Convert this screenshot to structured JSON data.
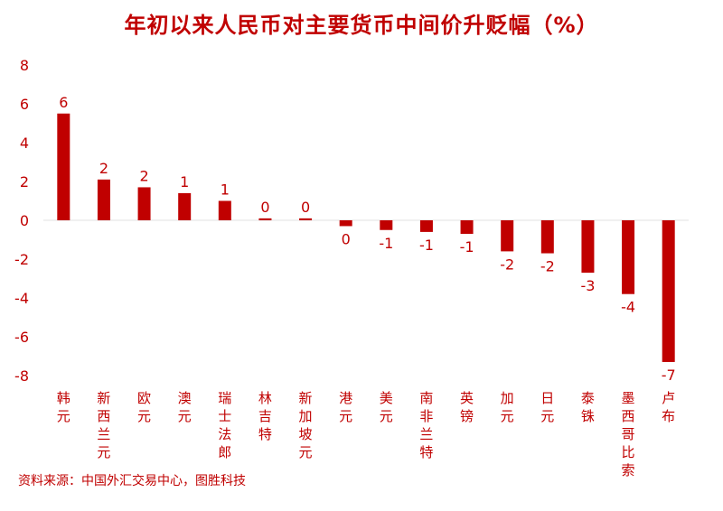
{
  "chart_data": {
    "type": "bar",
    "title": "年初以来人民币对主要货币中间价升贬幅（%）",
    "xlabel": "",
    "ylabel": "",
    "ylim": [
      -8,
      8
    ],
    "yticks": [
      "8",
      "6",
      "4",
      "2",
      "0",
      "-2",
      "-4",
      "-6",
      "-8"
    ],
    "ytick_values": [
      8,
      6,
      4,
      2,
      0,
      -2,
      -4,
      -6,
      -8
    ],
    "grid": false,
    "legend": "none",
    "categories": [
      "韩元",
      "新西兰元",
      "欧元",
      "澳元",
      "瑞士法郎",
      "林吉特",
      "新加坡元",
      "港元",
      "美元",
      "南非兰特",
      "英镑",
      "加元",
      "日元",
      "泰铢",
      "墨西哥比索",
      "卢布"
    ],
    "values": [
      5.5,
      2.1,
      1.7,
      1.4,
      1.0,
      0.1,
      0.1,
      -0.3,
      -0.5,
      -0.6,
      -0.7,
      -1.6,
      -1.7,
      -2.7,
      -3.8,
      -7.3
    ],
    "data_labels": [
      "6",
      "2",
      "2",
      "1",
      "1",
      "0",
      "0",
      "0",
      "-1",
      "-1",
      "-1",
      "-2",
      "-2",
      "-3",
      "-4",
      "-7"
    ],
    "bar_color": "#c00000",
    "axis_color": "#e0e0e0"
  },
  "footer": {
    "source": "资料来源：中国外汇交易中心，图胜科技"
  }
}
